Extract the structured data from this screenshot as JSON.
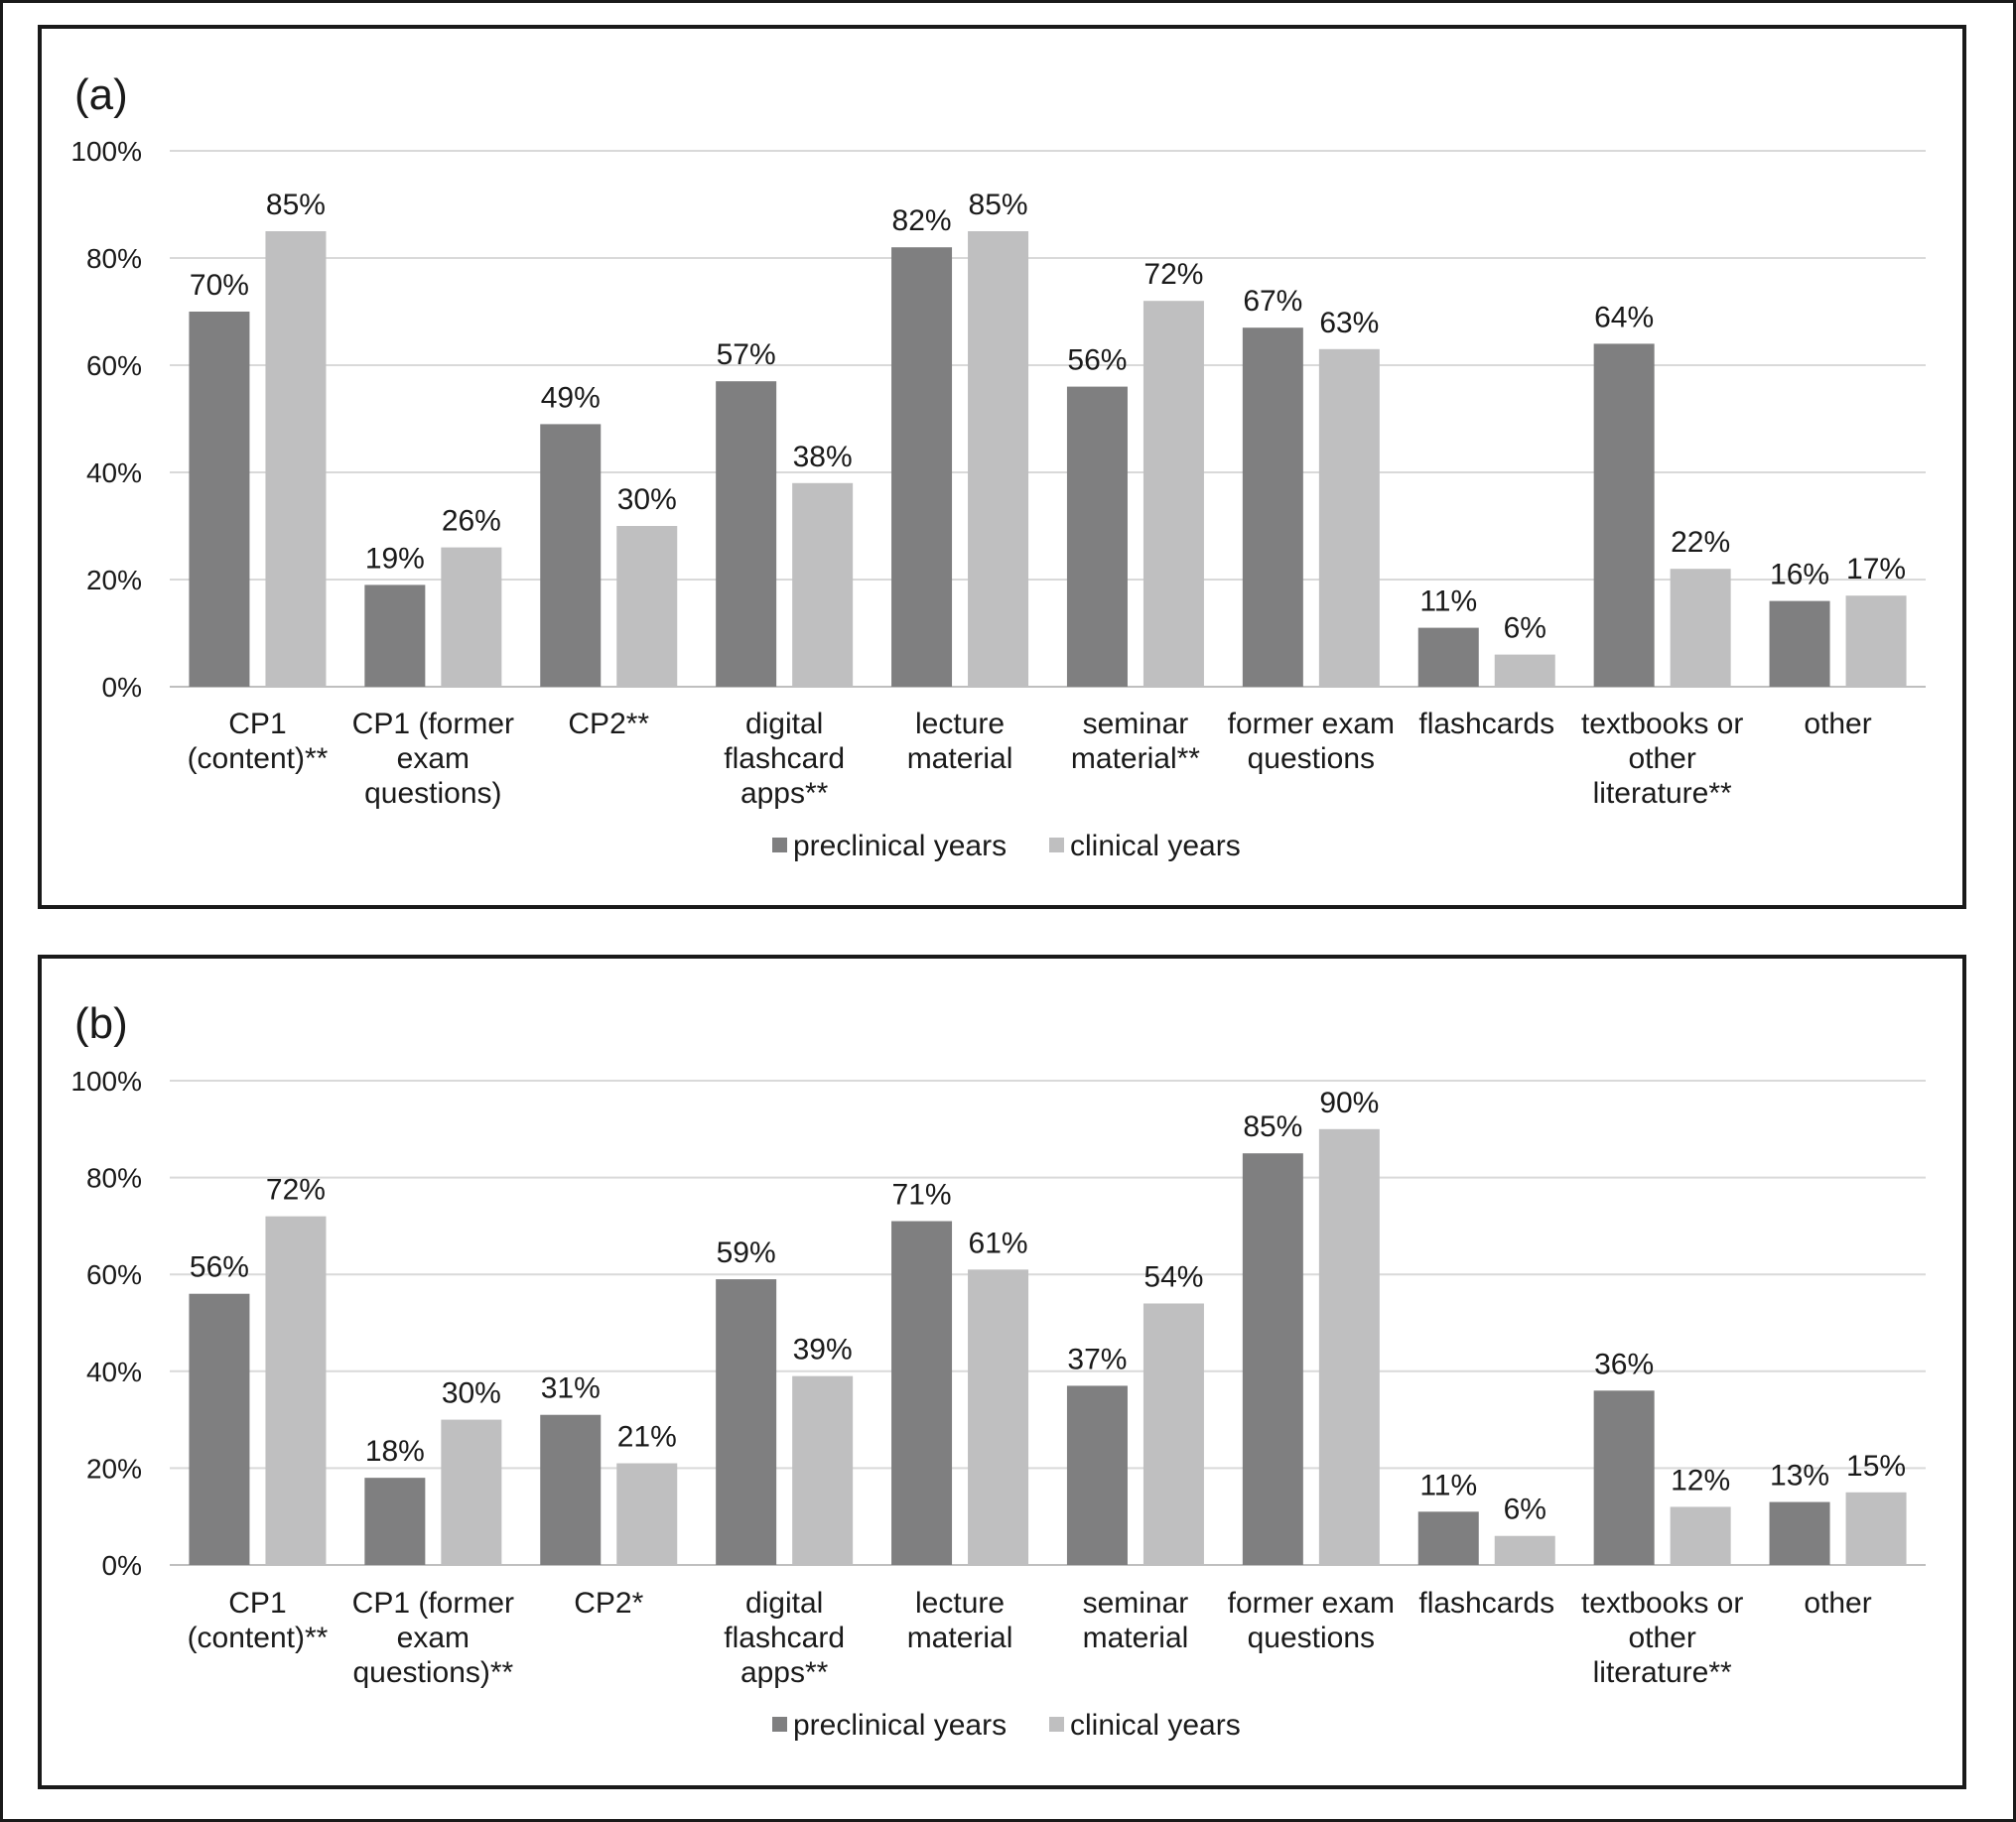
{
  "chart_data": [
    {
      "type": "bar",
      "panel_label": "(a)",
      "categories": [
        [
          "CP1",
          "(content)**"
        ],
        [
          "CP1 (former",
          "exam",
          "questions)"
        ],
        [
          "CP2**"
        ],
        [
          "digital",
          "flashcard",
          "apps**"
        ],
        [
          "lecture",
          "material"
        ],
        [
          "seminar",
          "material**"
        ],
        [
          "former exam",
          "questions"
        ],
        [
          "flashcards"
        ],
        [
          "textbooks or",
          "other",
          "literature**"
        ],
        [
          "other"
        ]
      ],
      "series": [
        {
          "name": "preclinical years",
          "color": "#7f7f80",
          "values": [
            70,
            19,
            49,
            57,
            82,
            56,
            67,
            11,
            64,
            16
          ]
        },
        {
          "name": "clinical years",
          "color": "#bfbfc0",
          "values": [
            85,
            26,
            30,
            38,
            85,
            72,
            63,
            6,
            22,
            17
          ]
        }
      ],
      "ylim": [
        0,
        100
      ],
      "yticks": [
        "0%",
        "20%",
        "40%",
        "60%",
        "80%",
        "100%"
      ],
      "legend_position": "bottom-center",
      "grid": true
    },
    {
      "type": "bar",
      "panel_label": "(b)",
      "categories": [
        [
          "CP1",
          "(content)**"
        ],
        [
          "CP1 (former",
          "exam",
          "questions)**"
        ],
        [
          "CP2*"
        ],
        [
          "digital",
          "flashcard",
          "apps**"
        ],
        [
          "lecture",
          "material"
        ],
        [
          "seminar",
          "material"
        ],
        [
          "former exam",
          "questions"
        ],
        [
          "flashcards"
        ],
        [
          "textbooks or",
          "other",
          "literature**"
        ],
        [
          "other"
        ]
      ],
      "series": [
        {
          "name": "preclinical years",
          "color": "#7f7f80",
          "values": [
            56,
            18,
            31,
            59,
            71,
            37,
            85,
            11,
            36,
            13
          ]
        },
        {
          "name": "clinical years",
          "color": "#bfbfc0",
          "values": [
            72,
            30,
            21,
            39,
            61,
            54,
            90,
            6,
            12,
            15
          ]
        }
      ],
      "ylim": [
        0,
        100
      ],
      "yticks": [
        "0%",
        "20%",
        "40%",
        "60%",
        "80%",
        "100%"
      ],
      "legend_position": "bottom-center",
      "grid": true
    }
  ]
}
